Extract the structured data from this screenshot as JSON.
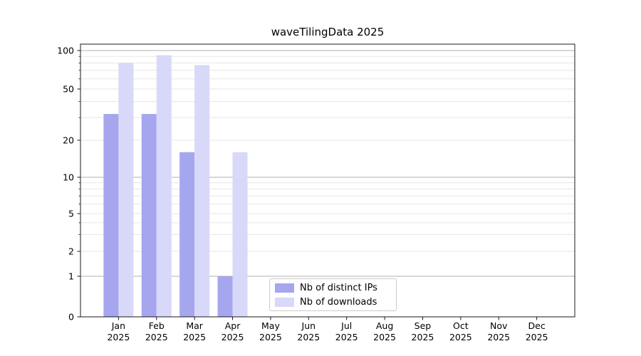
{
  "chart_data": {
    "type": "bar",
    "title": "waveTilingData 2025",
    "xlabel": "",
    "ylabel": "",
    "categories": [
      "Jan",
      "Feb",
      "Mar",
      "Apr",
      "May",
      "Jun",
      "Jul",
      "Aug",
      "Sep",
      "Oct",
      "Nov",
      "Dec"
    ],
    "category_year_line": "2025",
    "series": [
      {
        "name": "Nb of distinct IPs",
        "color": "#a6a6ee",
        "values": [
          32,
          32,
          16,
          1,
          0,
          0,
          0,
          0,
          0,
          0,
          0,
          0
        ]
      },
      {
        "name": "Nb of downloads",
        "color": "#d8d8f8",
        "values": [
          80,
          92,
          77,
          16,
          0,
          0,
          0,
          0,
          0,
          0,
          0,
          0
        ]
      }
    ],
    "y_axis": {
      "scale": "symlog",
      "tick_values": [
        0,
        1,
        2,
        5,
        10,
        20,
        50,
        100
      ],
      "major_grid_values": [
        1,
        10,
        100
      ],
      "minor_grid_values": [
        2,
        3,
        4,
        5,
        6,
        7,
        8,
        9,
        20,
        30,
        40,
        50,
        60,
        70,
        80,
        90
      ],
      "ylim": [
        0,
        112
      ]
    },
    "legend": {
      "position": "lower-center",
      "entries": [
        "Nb of distinct IPs",
        "Nb of downloads"
      ]
    },
    "grid": true,
    "colors": {
      "major_grid": "#b0b0b0",
      "minor_grid": "#e7e7e7",
      "axis_spine": "#1a1a1a",
      "tick_text": "#000000",
      "background": "#ffffff"
    }
  }
}
